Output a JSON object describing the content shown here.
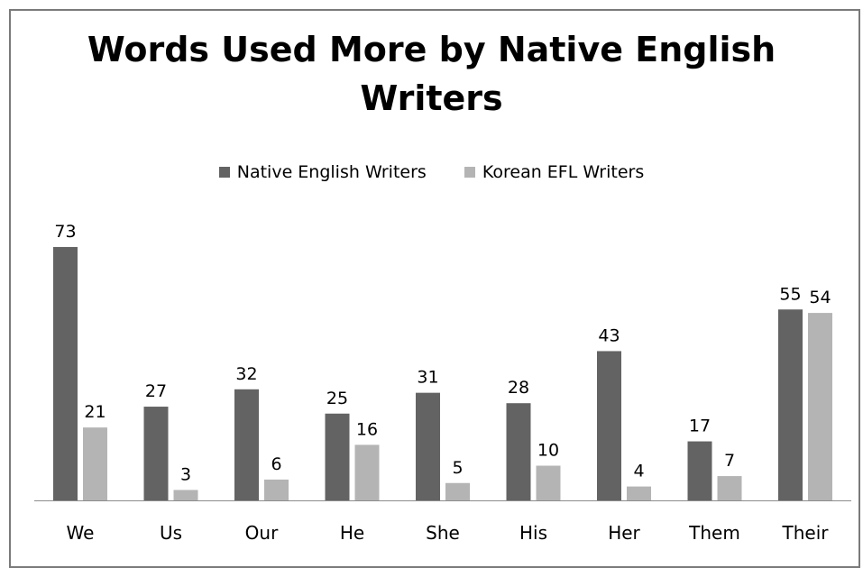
{
  "chart_data": {
    "type": "bar",
    "title": "Words Used More by Native English Writers",
    "title_lines": [
      "Words Used More by Native English",
      "Writers"
    ],
    "categories": [
      "We",
      "Us",
      "Our",
      "He",
      "She",
      "His",
      "Her",
      "Them",
      "Their"
    ],
    "series": [
      {
        "name": "Native English Writers",
        "color": "#636363",
        "values": [
          73,
          27,
          32,
          25,
          31,
          28,
          43,
          17,
          55
        ]
      },
      {
        "name": "Korean EFL Writers",
        "color": "#b4b4b4",
        "values": [
          21,
          3,
          6,
          16,
          5,
          10,
          4,
          7,
          54
        ]
      }
    ],
    "ylim": [
      0,
      73
    ],
    "legend_position": "top",
    "grid": false,
    "xlabel": "",
    "ylabel": ""
  }
}
